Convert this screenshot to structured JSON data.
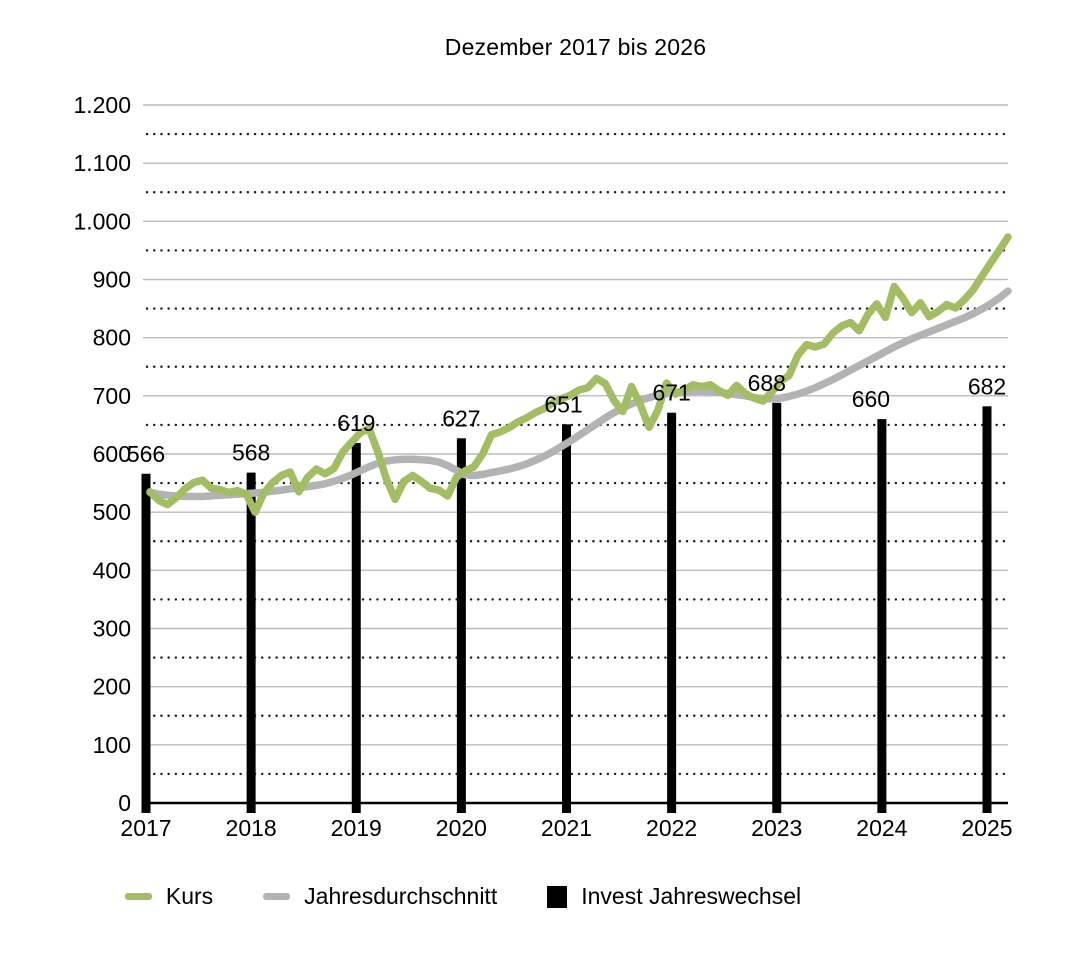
{
  "title": "Dezember 2017 bis 2026",
  "legend": {
    "items": [
      {
        "label": "Kurs",
        "color": "#a3bd63",
        "swatch": "line"
      },
      {
        "label": "Jahresdurchschnitt",
        "color": "#b3b3b3",
        "swatch": "line"
      },
      {
        "label": "Invest Jahreswechsel",
        "color": "#000000",
        "swatch": "square"
      }
    ]
  },
  "colors": {
    "kurs_line": "#a3bd63",
    "average_line": "#b3b3b3",
    "invest_bar": "#000000",
    "grid_major": "#bcbcbc",
    "grid_minor_dots": "#1a1a1a",
    "axis": "#000000",
    "text": "#000000",
    "background": "#ffffff"
  },
  "chart_data": {
    "type": "line+bar",
    "title": "Dezember 2017 bis 2026",
    "x_tick_labels": [
      "2017",
      "2018",
      "2019",
      "2020",
      "2021",
      "2022",
      "2023",
      "2024",
      "2025"
    ],
    "y_tick_labels": [
      "0",
      "100",
      "200",
      "300",
      "400",
      "500",
      "600",
      "700",
      "800",
      "900",
      "1.000",
      "1.100",
      "1.200"
    ],
    "ylim": [
      0,
      1200
    ],
    "y_major_step": 100,
    "y_minor_dotted_step": 50,
    "grid": "major solid gray + minor dotted black",
    "legend_position": "bottom",
    "series": [
      {
        "name": "Kurs",
        "type": "line",
        "color": "#a3bd63",
        "x_start": "Dez 2017",
        "x_interval": "monatlich",
        "values": [
          535,
          520,
          513,
          525,
          540,
          551,
          555,
          541,
          539,
          534,
          537,
          531,
          500,
          533,
          551,
          563,
          569,
          535,
          560,
          574,
          566,
          575,
          603,
          620,
          636,
          644,
          605,
          557,
          522,
          553,
          563,
          553,
          541,
          538,
          528,
          560,
          571,
          578,
          600,
          633,
          638,
          645,
          655,
          662,
          671,
          678,
          688,
          695,
          701,
          710,
          714,
          730,
          721,
          692,
          673,
          716,
          685,
          646,
          675,
          722,
          703,
          710,
          719,
          716,
          719,
          709,
          701,
          718,
          704,
          696,
          691,
          706,
          725,
          735,
          770,
          788,
          784,
          789,
          808,
          820,
          826,
          812,
          840,
          858,
          835,
          888,
          868,
          843,
          860,
          836,
          845,
          857,
          851,
          865,
          882,
          905,
          928,
          950,
          973
        ]
      },
      {
        "name": "Jahresdurchschnitt",
        "type": "line",
        "color": "#b3b3b3",
        "x_start": "Dez 2017",
        "x_interval": "monatlich",
        "values": [
          534,
          531,
          529,
          528,
          527,
          527,
          527,
          528,
          529,
          530,
          531,
          532,
          533,
          534,
          536,
          538,
          540,
          542,
          544,
          546,
          549,
          553,
          558,
          564,
          571,
          578,
          584,
          588,
          590,
          591,
          591,
          590,
          589,
          586,
          580,
          572,
          564,
          563,
          565,
          568,
          571,
          574,
          578,
          583,
          589,
          596,
          604,
          613,
          622,
          632,
          642,
          652,
          662,
          671,
          679,
          686,
          692,
          697,
          701,
          704,
          706,
          707,
          708,
          708,
          707,
          706,
          704,
          702,
          700,
          697,
          695,
          695,
          696,
          699,
          703,
          708,
          714,
          721,
          728,
          736,
          744,
          752,
          760,
          768,
          776,
          784,
          791,
          798,
          804,
          810,
          816,
          822,
          828,
          834,
          841,
          849,
          858,
          868,
          880
        ]
      },
      {
        "name": "Invest Jahreswechsel",
        "type": "bar",
        "color": "#000000",
        "categories": [
          "2017",
          "2018",
          "2019",
          "2020",
          "2021",
          "2022",
          "2023",
          "2024",
          "2025"
        ],
        "values": [
          566,
          568,
          619,
          627,
          651,
          671,
          688,
          660,
          682
        ],
        "labels": [
          "566",
          "568",
          "619",
          "627",
          "651",
          "671",
          "688",
          "660",
          "682"
        ]
      }
    ]
  }
}
